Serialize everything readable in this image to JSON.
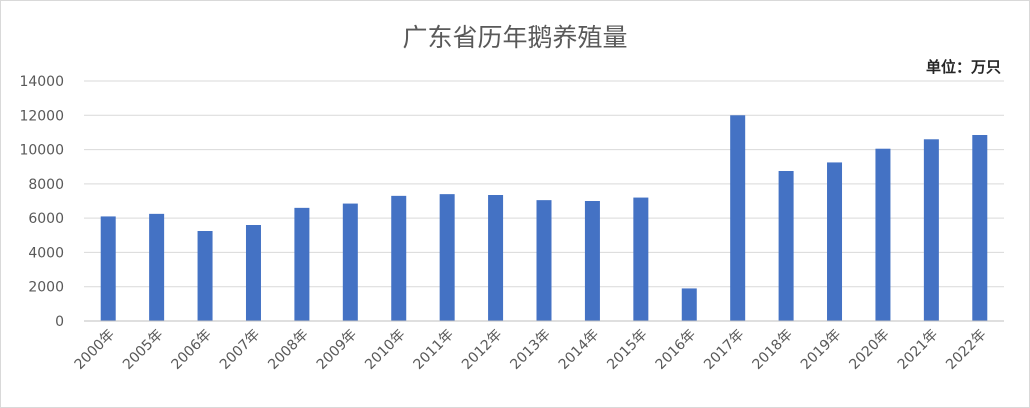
{
  "chart_data": {
    "type": "bar",
    "title": "广东省历年鹅养殖量",
    "unit_label": "单位：万只",
    "xlabel": "",
    "ylabel": "",
    "ylim": [
      0,
      14000
    ],
    "yticks": [
      0,
      2000,
      4000,
      6000,
      8000,
      10000,
      12000,
      14000
    ],
    "grid": true,
    "bar_color": "#4472C4",
    "categories": [
      "2000年",
      "2005年",
      "2006年",
      "2007年",
      "2008年",
      "2009年",
      "2010年",
      "2011年",
      "2012年",
      "2013年",
      "2014年",
      "2015年",
      "2016年",
      "2017年",
      "2018年",
      "2019年",
      "2020年",
      "2021年",
      "2022年"
    ],
    "values": [
      6100,
      6250,
      5250,
      5600,
      6600,
      6850,
      7300,
      7400,
      7350,
      7050,
      7000,
      7200,
      1900,
      12000,
      8750,
      9250,
      10050,
      10600,
      10850
    ]
  }
}
